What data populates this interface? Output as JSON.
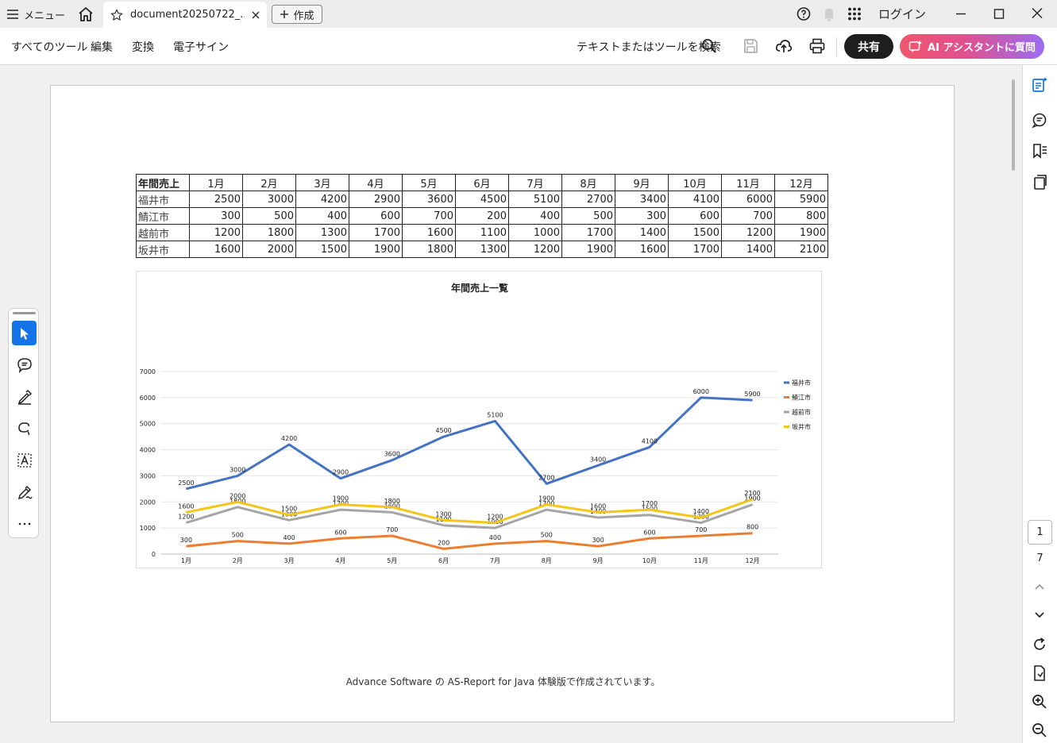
{
  "titlebar": {
    "menu_label": "メニュー",
    "tab_title": "document20250722_...",
    "new_label": "作成",
    "login_label": "ログイン"
  },
  "toolbar": {
    "menu_items": [
      "すべてのツール",
      "編集",
      "変換",
      "電子サイン"
    ],
    "search_label": "テキストまたはツールを検索",
    "share_label": "共有",
    "ai_label": "AI アシスタントに質問"
  },
  "table": {
    "corner": "年間売上",
    "months": [
      "1月",
      "2月",
      "3月",
      "4月",
      "5月",
      "6月",
      "7月",
      "8月",
      "9月",
      "10月",
      "11月",
      "12月"
    ],
    "rows": [
      {
        "label": "福井市",
        "values": [
          2500,
          3000,
          4200,
          2900,
          3600,
          4500,
          5100,
          2700,
          3400,
          4100,
          6000,
          5900
        ]
      },
      {
        "label": "鯖江市",
        "values": [
          300,
          500,
          400,
          600,
          700,
          200,
          400,
          500,
          300,
          600,
          700,
          800
        ]
      },
      {
        "label": "越前市",
        "values": [
          1200,
          1800,
          1300,
          1700,
          1600,
          1100,
          1000,
          1700,
          1400,
          1500,
          1200,
          1900
        ]
      },
      {
        "label": "坂井市",
        "values": [
          1600,
          2000,
          1500,
          1900,
          1800,
          1300,
          1200,
          1900,
          1600,
          1700,
          1400,
          2100
        ]
      }
    ]
  },
  "chart_data": {
    "type": "line",
    "title": "年間売上一覧",
    "categories": [
      "1月",
      "2月",
      "3月",
      "4月",
      "5月",
      "6月",
      "7月",
      "8月",
      "9月",
      "10月",
      "11月",
      "12月"
    ],
    "ylim": [
      0,
      7000
    ],
    "yticks": [
      0,
      1000,
      2000,
      3000,
      4000,
      5000,
      6000,
      7000
    ],
    "grid": true,
    "legend_position": "right",
    "series": [
      {
        "name": "福井市",
        "color": "#4472c4",
        "values": [
          2500,
          3000,
          4200,
          2900,
          3600,
          4500,
          5100,
          2700,
          3400,
          4100,
          6000,
          5900
        ]
      },
      {
        "name": "鯖江市",
        "color": "#ed7d31",
        "values": [
          300,
          500,
          400,
          600,
          700,
          200,
          400,
          500,
          300,
          600,
          700,
          800
        ]
      },
      {
        "name": "越前市",
        "color": "#a5a5a5",
        "values": [
          1200,
          1800,
          1300,
          1700,
          1600,
          1100,
          1000,
          1700,
          1400,
          1500,
          1200,
          1900
        ]
      },
      {
        "name": "坂井市",
        "color": "#f5c518",
        "values": [
          1600,
          2000,
          1500,
          1900,
          1800,
          1300,
          1200,
          1900,
          1600,
          1700,
          1400,
          2100
        ]
      }
    ]
  },
  "footer_note": "Advance Software の AS-Report for Java 体験版で作成されています。",
  "page_nav": {
    "current": "1",
    "total": "7"
  },
  "colors": {
    "accent": "#1473e6",
    "share_bg": "#1e1e1e"
  }
}
